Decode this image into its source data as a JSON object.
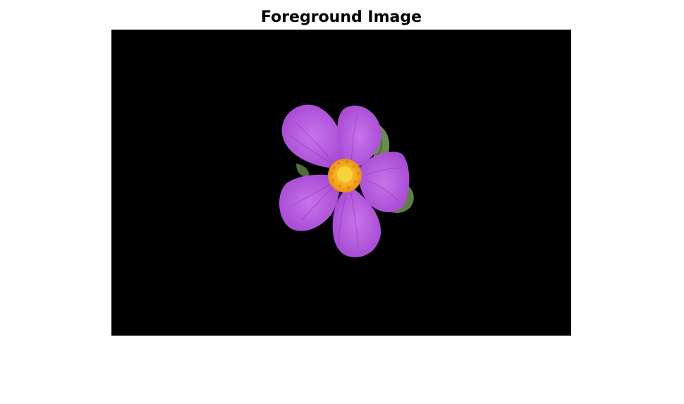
{
  "figure": {
    "title": "Foreground Image"
  },
  "image": {
    "subject": "flower-image",
    "background_color": "#000000",
    "colors": {
      "petal": "#b04fd8",
      "petal_light": "#c873ea",
      "petal_vein": "#8e34b8",
      "leaf": "#6b8a4e",
      "leaf_dark": "#4f6b38",
      "stamen": "#f2a21c",
      "stamen_center": "#f7d33a"
    }
  }
}
